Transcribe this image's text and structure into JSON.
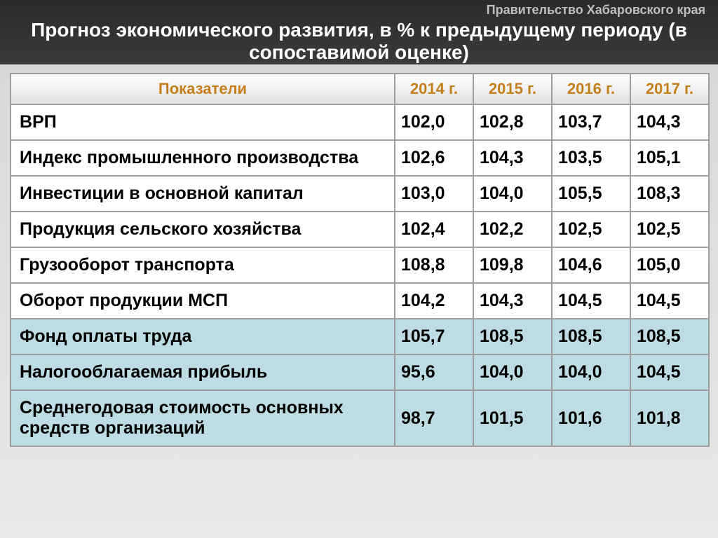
{
  "header": {
    "organization": "Правительство Хабаровского края",
    "title": "Прогноз экономического развития, в % к предыдущему периоду (в сопоставимой оценке)"
  },
  "table": {
    "columns": [
      "Показатели",
      "2014 г.",
      "2015 г.",
      "2016 г.",
      "2017 г."
    ],
    "rowStyleBreak": 6,
    "rows": [
      {
        "indicator": "ВРП",
        "v": [
          "102,0",
          "102,8",
          "103,7",
          "104,3"
        ]
      },
      {
        "indicator": "Индекс промышленного производства",
        "v": [
          "102,6",
          "104,3",
          "103,5",
          "105,1"
        ]
      },
      {
        "indicator": "Инвестиции в основной капитал",
        "v": [
          "103,0",
          "104,0",
          "105,5",
          "108,3"
        ]
      },
      {
        "indicator": "Продукция сельского хозяйства",
        "v": [
          "102,4",
          "102,2",
          "102,5",
          "102,5"
        ]
      },
      {
        "indicator": "Грузооборот транспорта",
        "v": [
          "108,8",
          "109,8",
          "104,6",
          "105,0"
        ]
      },
      {
        "indicator": "Оборот продукции МСП",
        "v": [
          "104,2",
          "104,3",
          "104,5",
          "104,5"
        ]
      },
      {
        "indicator": "Фонд оплаты труда",
        "v": [
          "105,7",
          "108,5",
          "108,5",
          "108,5"
        ]
      },
      {
        "indicator": "Налогооблагаемая прибыль",
        "v": [
          "95,6",
          "104,0",
          "104,0",
          "104,5"
        ]
      },
      {
        "indicator": "Среднегодовая стоимость основных средств организаций",
        "v": [
          "98,7",
          "101,5",
          "101,6",
          "101,8"
        ]
      }
    ]
  },
  "style": {
    "header_accent": "#c5801e",
    "row_white": "#ffffff",
    "row_blue": "#bedce4",
    "border": "#9e9e9e",
    "title_color": "#ffffff",
    "org_color": "#bfbfbf",
    "title_fontsize": 28,
    "cell_fontsize": 25,
    "header_fontsize": 22
  }
}
